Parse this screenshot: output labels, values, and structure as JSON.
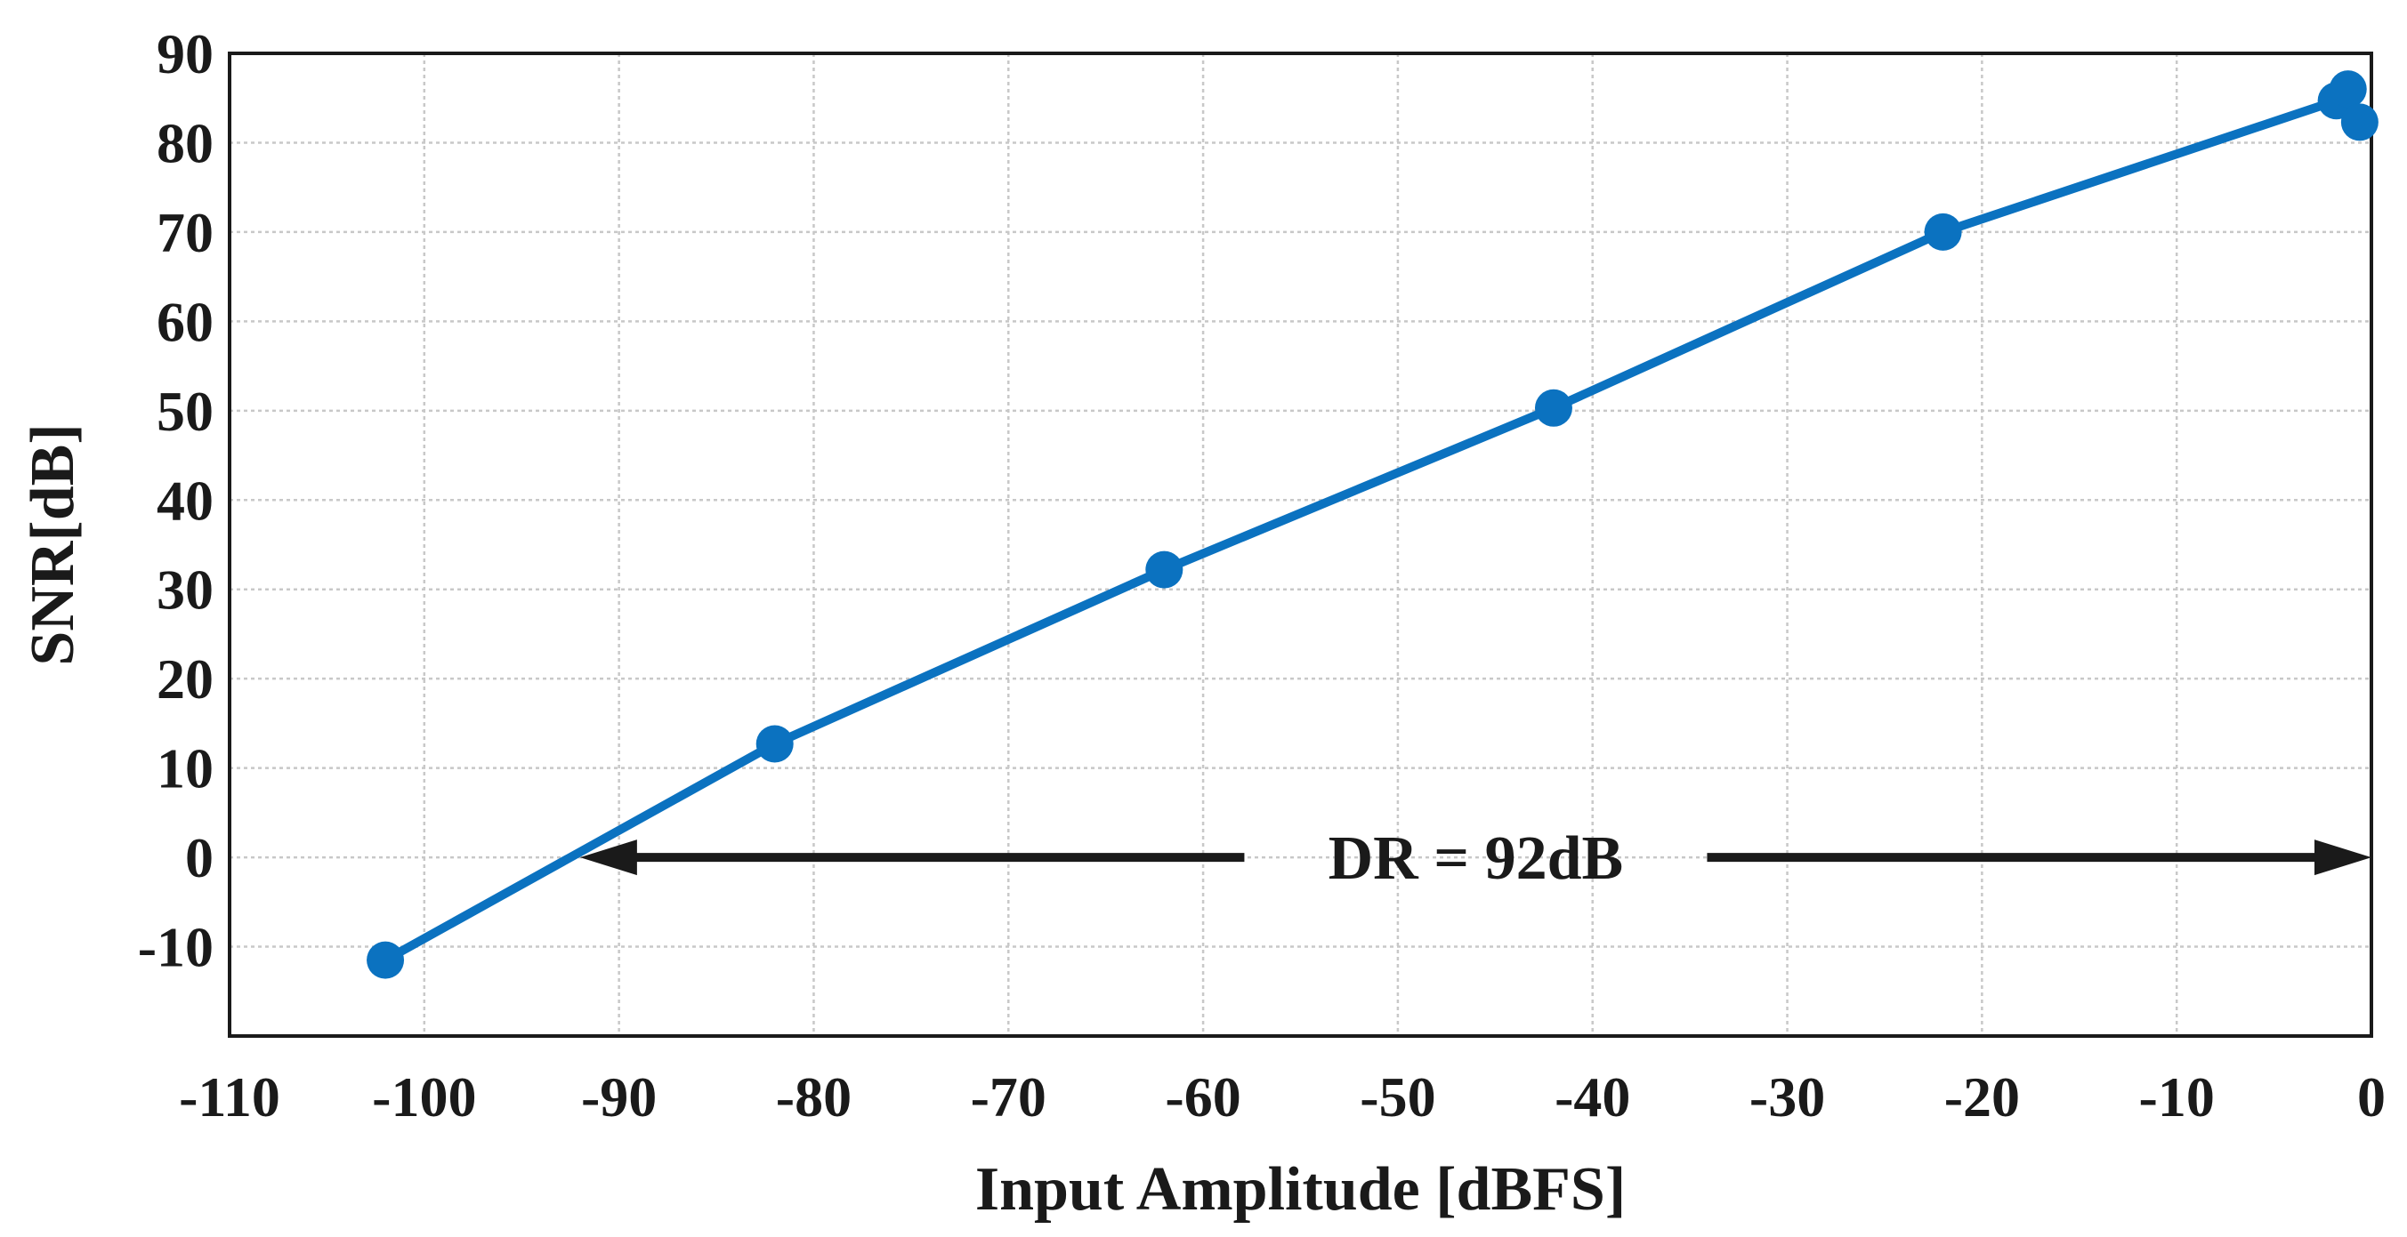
{
  "chart_data": {
    "type": "line",
    "title": "",
    "xlabel": "Input Amplitude [dBFS]",
    "ylabel": "SNR[dB]",
    "xlim": [
      -110,
      0
    ],
    "ylim": [
      -20,
      90
    ],
    "xticks": [
      -110,
      -100,
      -90,
      -80,
      -70,
      -60,
      -50,
      -40,
      -30,
      -20,
      -10,
      0
    ],
    "yticks": [
      -10,
      0,
      10,
      20,
      30,
      40,
      50,
      60,
      70,
      80,
      90
    ],
    "grid": true,
    "series": [
      {
        "color": "#0b72c0",
        "x": [
          -102,
          -82,
          -62,
          -42,
          -22,
          -1.8,
          -1.2,
          -0.6
        ],
        "y": [
          -11.5,
          12.7,
          32.2,
          50.3,
          70,
          84.7,
          86,
          82.3
        ]
      }
    ],
    "annotation": {
      "text": "DR = 92dB",
      "y": 0,
      "x_from": -92,
      "x_to": 0
    }
  }
}
